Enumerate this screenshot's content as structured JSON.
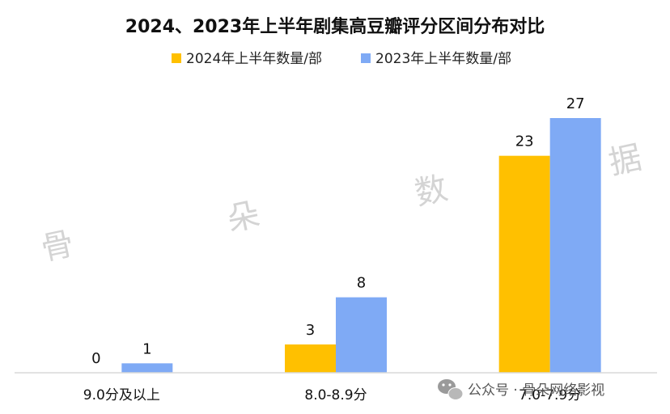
{
  "chart_data": {
    "type": "bar",
    "title": "2024、2023年上半年剧集高豆瓣评分区间分布对比",
    "categories": [
      "9.0分及以上",
      "8.0-8.9分",
      "7.0-7.9分"
    ],
    "series": [
      {
        "name": "2024年上半年数量/部",
        "values": [
          0,
          3,
          23
        ],
        "color": "#FFC000"
      },
      {
        "name": "2023年上半年数量/部",
        "values": [
          1,
          8,
          27
        ],
        "color": "#7FAAF5"
      }
    ],
    "ylim": [
      0,
      27
    ],
    "grid": false,
    "legend_position": "top-center"
  },
  "watermark": {
    "chars": [
      "骨",
      "朵",
      "数",
      "据"
    ],
    "color": "#d4d4d4"
  },
  "footer": {
    "icon": "wechat-icon",
    "text": "公众号 · 骨朵网络影视"
  }
}
